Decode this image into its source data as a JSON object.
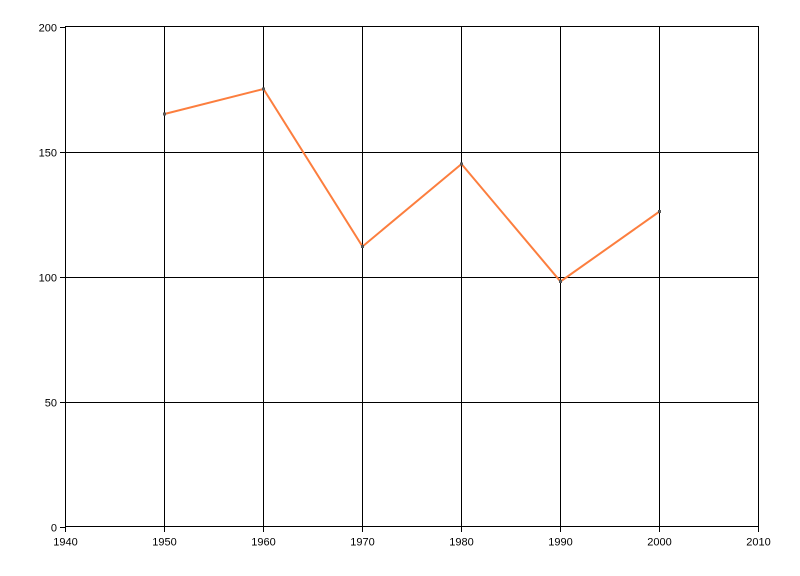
{
  "chart_data": {
    "type": "line",
    "title": "",
    "xlabel": "",
    "ylabel": "",
    "x": [
      1950,
      1960,
      1970,
      1980,
      1990,
      2000
    ],
    "values": [
      165,
      175,
      112,
      145,
      98,
      126
    ],
    "xlim": [
      1940,
      2010
    ],
    "ylim": [
      0,
      200
    ],
    "x_ticks": [
      1940,
      1950,
      1960,
      1970,
      1980,
      1990,
      2000,
      2010
    ],
    "y_ticks": [
      0,
      50,
      100,
      150,
      200
    ],
    "grid": true,
    "legend": false,
    "line_color": "#FC7E3E",
    "marker_color": "#575757",
    "axis_color": "#000000",
    "grid_color": "#000000",
    "background_color": "#FFFFFF"
  }
}
